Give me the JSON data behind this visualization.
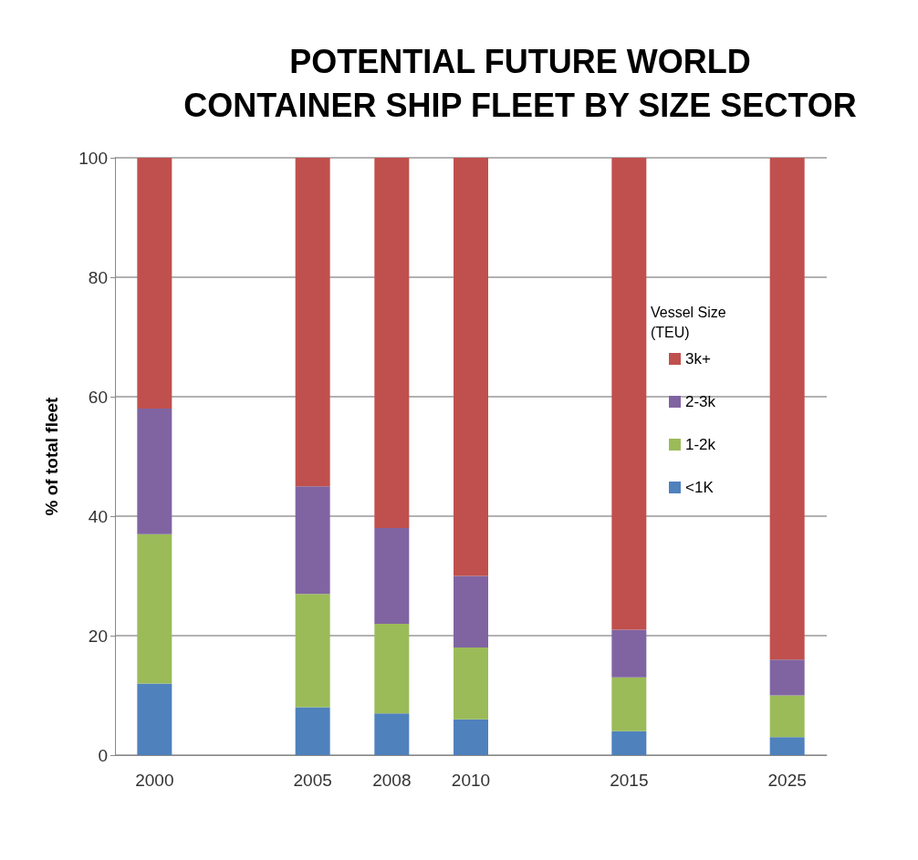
{
  "chart_data": {
    "type": "bar",
    "title": "POTENTIAL FUTURE WORLD\nCONTAINER SHIP FLEET BY SIZE SECTOR",
    "ylabel": "% of total fleet",
    "legend_title": "Vessel Size\n(TEU)",
    "categories": [
      "2000",
      null,
      "2005",
      "2008",
      "2010",
      null,
      "2015",
      null,
      "2025"
    ],
    "stacked": true,
    "series": [
      {
        "name": "<1K",
        "color": "#4f81bd",
        "values": [
          12,
          null,
          8,
          7,
          6,
          null,
          4,
          null,
          3
        ]
      },
      {
        "name": "1-2k",
        "color": "#9bbb59",
        "values": [
          25,
          null,
          19,
          15,
          12,
          null,
          9,
          null,
          7
        ]
      },
      {
        "name": "2-3k",
        "color": "#8064a2",
        "values": [
          21,
          null,
          18,
          16,
          12,
          null,
          8,
          null,
          6
        ]
      },
      {
        "name": "3k+",
        "color": "#c0504d",
        "values": [
          42,
          null,
          55,
          62,
          70,
          null,
          79,
          null,
          84
        ]
      }
    ],
    "ylim": [
      0,
      100
    ],
    "yticks": [
      0,
      20,
      40,
      60,
      80,
      100
    ],
    "grid": "y",
    "legend": "right"
  }
}
